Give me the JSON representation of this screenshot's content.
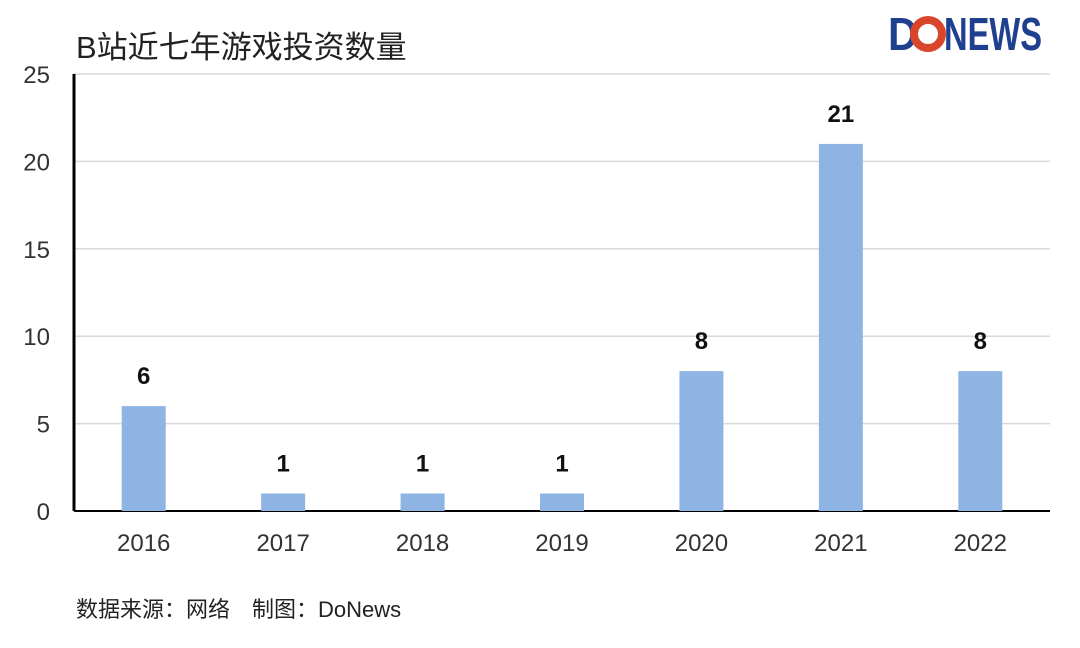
{
  "logo_text": "DoNEWS",
  "chart_data": {
    "type": "bar",
    "title": "B站近七年游戏投资数量",
    "categories": [
      "2016",
      "2017",
      "2018",
      "2019",
      "2020",
      "2021",
      "2022"
    ],
    "values": [
      6,
      1,
      1,
      1,
      8,
      21,
      8
    ],
    "xlabel": "",
    "ylabel": "",
    "ylim": [
      0,
      25
    ],
    "yticks": [
      0,
      5,
      10,
      15,
      20,
      25
    ],
    "grid": true,
    "data_labels": true,
    "bar_color": "#8db4e2",
    "source": "数据来源：网络　制图：DoNews"
  },
  "colors": {
    "logo_blue": "#1f3f8f",
    "logo_red": "#d9452b"
  }
}
